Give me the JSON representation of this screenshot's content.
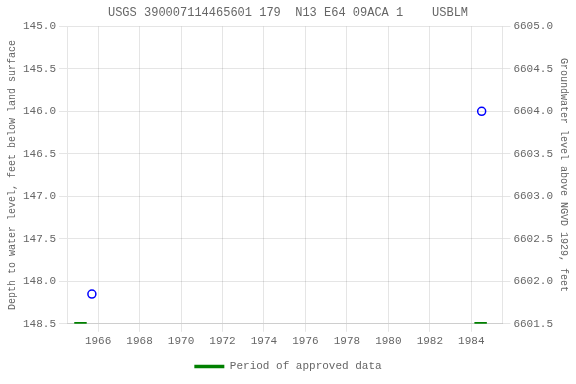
{
  "chart_data": {
    "type": "scatter",
    "title": "USGS 390007114465601 179  N13 E64 09ACA 1    USBLM",
    "ylabel": "Depth to water level, feet below land surface",
    "y2label": "Groundwater level above NGVD 1929, feet",
    "xlim": [
      1964.5,
      1985.5
    ],
    "xticks": [
      1966,
      1968,
      1970,
      1972,
      1974,
      1976,
      1978,
      1980,
      1982,
      1984
    ],
    "ylim": [
      148.5,
      145.0
    ],
    "yticks": [
      {
        "value": 145.0,
        "label": "145.0"
      },
      145.5,
      {
        "value": 146.0,
        "label": "146.0"
      },
      146.5,
      {
        "value": 147.0,
        "label": "147.0"
      },
      147.5,
      {
        "value": 148.0,
        "label": "148.0"
      },
      148.5
    ],
    "y2lim": [
      6601.5,
      6605.0
    ],
    "y2ticks": [
      6601.5,
      {
        "value": 6602.0,
        "label": "6602.0"
      },
      6602.5,
      {
        "value": 6603.0,
        "label": "6603.0"
      },
      6603.5,
      {
        "value": 6604.0,
        "label": "6604.0"
      },
      6604.5,
      {
        "value": 6605.0,
        "label": "6605.0"
      }
    ],
    "grid": true,
    "legend": "bottom",
    "series": [
      {
        "color": "blue",
        "marker": "open_circle",
        "x": [
          1965.7,
          1984.5
        ],
        "values": [
          148.15,
          146.0
        ]
      },
      {
        "name": "Period of approved data",
        "color": "#008000",
        "type": "line",
        "segments": [
          {
            "x_start": 1964.85,
            "x_end": 1965.45,
            "y": 148.5
          },
          {
            "x_start": 1984.15,
            "x_end": 1984.75,
            "y": 148.5
          }
        ]
      }
    ]
  }
}
